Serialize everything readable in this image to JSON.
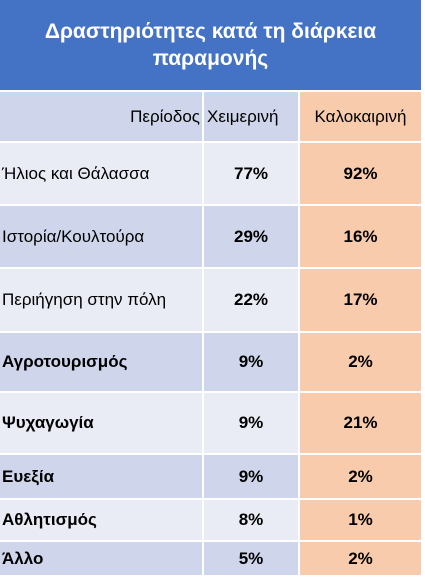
{
  "title": "Δραστηριότητες κατά τη διάρκεια παραμονής",
  "columns": [
    "Περίοδος",
    "Χειμερινή",
    "Καλοκαιρινή"
  ],
  "rows": [
    {
      "activity": "Ήλιος και Θάλασσα",
      "winter": "77%",
      "summer": "92%"
    },
    {
      "activity": "Ιστορία/Κουλτούρα",
      "winter": "29%",
      "summer": "16%"
    },
    {
      "activity": "Περιήγηση  στην πόλη",
      "winter": "22%",
      "summer": "17%"
    },
    {
      "activity": "Αγροτουρισμός",
      "winter": "9%",
      "summer": "2%"
    },
    {
      "activity": "Ψυχαγωγία",
      "winter": "9%",
      "summer": "21%"
    },
    {
      "activity": "Ευεξία",
      "winter": "9%",
      "summer": "2%"
    },
    {
      "activity": "Αθλητισμός",
      "winter": "8%",
      "summer": "1%"
    },
    {
      "activity": "Άλλο",
      "winter": "5%",
      "summer": "2%"
    }
  ],
  "colors": {
    "title_bg": "#4472c4",
    "row_dark": "#cfd5ea",
    "row_light": "#e9ebf5",
    "summer_col": "#f8cbad"
  }
}
